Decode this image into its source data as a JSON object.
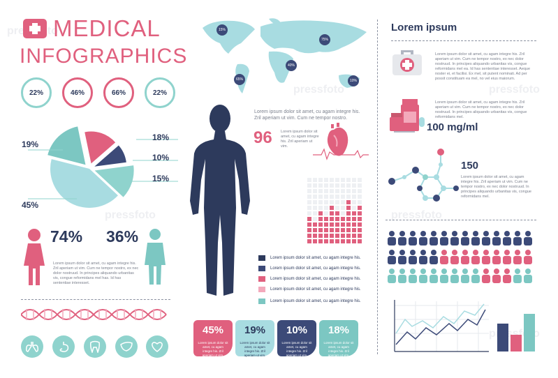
{
  "header": {
    "line1": "MEDICAL",
    "line2": "INFOGRAPHICS"
  },
  "rings": [
    {
      "label": "22%"
    },
    {
      "label": "46%"
    },
    {
      "label": "66%"
    },
    {
      "label": "22%"
    }
  ],
  "pie": {
    "slices": [
      {
        "label": "19%",
        "value": 19,
        "color": "#7cc7c2"
      },
      {
        "label": "18%",
        "value": 18,
        "color": "#e0607e"
      },
      {
        "label": "10%",
        "value": 10,
        "color": "#3c4a78"
      },
      {
        "label": "15%",
        "value": 15,
        "color": "#8fd3cd"
      },
      {
        "label": "45%",
        "value": 45,
        "color": "#a8dce1"
      }
    ]
  },
  "people": {
    "female_pct": "74%",
    "male_pct": "36%",
    "text": "Lorem ipsum dolor sit amet, cu agam integre his. Zril aperiam ut vim. Cum ne tempor nostro, ex nec dolor nostruud. In principes aliquando urbanitas vis, congue reformidans mel has. Id has sententiae interesset."
  },
  "map": {
    "markers": [
      "15%",
      "75%",
      "40%",
      "65%",
      "10%"
    ]
  },
  "heart": {
    "intro": "Lorem ipsum dolor sit amet, cu agam integre his. Zril aperiam ut vim. Cum ne tempor nostro.",
    "bpm": "96",
    "bpm_text": "Lorem ipsum dolor sit amet, cu agam integre his. Zril aperiam ut vim."
  },
  "legend": [
    {
      "text": "Lorem ipsum dolor sit amet, cu agam integre his.",
      "color": "#2d3a5c"
    },
    {
      "text": "Lorem ipsum dolor sit amet, cu agam integre his.",
      "color": "#3c4a78"
    },
    {
      "text": "Lorem ipsum dolor sit amet, cu agam integre his.",
      "color": "#e0607e"
    },
    {
      "text": "Lorem ipsum dolor sit amet, cu agam integre his.",
      "color": "#f3a9bb"
    },
    {
      "text": "Lorem ipsum dolor sit amet, cu agam integre his.",
      "color": "#7cc7c2"
    }
  ],
  "cards": [
    {
      "value": "45%",
      "text": "Lorem ipsum dolor sit amet, cu agam integre his. Zril aperiam ut vim.",
      "bg": "#e0607e",
      "fg": "#ffffff"
    },
    {
      "value": "19%",
      "text": "Lorem ipsum dolor sit amet, cu agam integre his. Zril aperiam ut vim.",
      "bg": "#a8dce1",
      "fg": "#2d3a5c"
    },
    {
      "value": "10%",
      "text": "Lorem ipsum dolor sit amet, cu agam integre his. Zril aperiam ut vim.",
      "bg": "#3c4a78",
      "fg": "#ffffff"
    },
    {
      "value": "18%",
      "text": "Lorem ipsum dolor sit amet, cu agam integre his. Zril aperiam ut vim.",
      "bg": "#7cc7c2",
      "fg": "#ffffff"
    }
  ],
  "right": {
    "heading": "Lorem ipsum",
    "kit_text": "Lorem ipsum dolor sit amet, cu agam integre his. Zril aperiam ut vim. Cum ne tempor nostro, ex nec dolor nostruud. In principes aliquando urbanitas vis, congue reformidans mel ea. Id has sententiae interesset. Aeque noster ei, et facilisi. Ex mel, sit putent nominati. Ad per possit constituam ea mel, no vel eius maiorum.",
    "pills_text": "Lorem ipsum dolor sit amet, cu agam integre his. Zril aperiam ut vim. Cum ne tempor nostro, ex nec dolor nostruud. In principes aliquando urbanitas vis, congue reformidans mel.",
    "dosage": "100 mg/ml",
    "molecule_value": "150",
    "molecule_text": "Lorem ipsum dolor sit amet, cu agam integre his. Zril aperiam ut vim. Cum ne tempor nostro, ex nec dolor nostruud. In principes aliquando urbanitas vis, congue reformidans mel."
  },
  "watermark": "pressfoto",
  "colors": {
    "pink": "#e0607e",
    "navy": "#2d3a5c",
    "teal": "#7cc7c2",
    "lightblue": "#a8dce1",
    "lightpink": "#f3a9bb"
  }
}
